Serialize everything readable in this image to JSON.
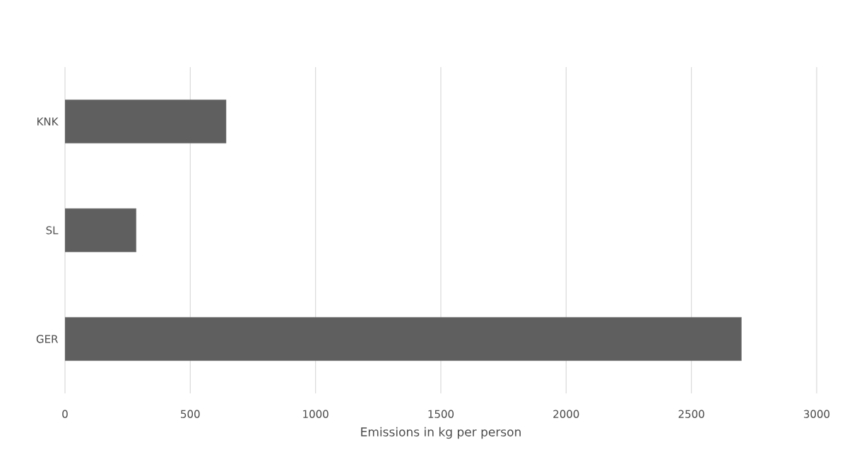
{
  "chart_data": {
    "type": "bar",
    "orientation": "horizontal",
    "xlabel": "Emissions in kg per person",
    "categories": [
      "KNK",
      "SL",
      "GER"
    ],
    "values": [
      643,
      284,
      2700
    ],
    "color": "#5f5f5f",
    "xlim": [
      0,
      3000
    ],
    "xticks": [
      0,
      500,
      1000,
      1500,
      2000,
      2500,
      3000
    ],
    "grid": "x"
  }
}
